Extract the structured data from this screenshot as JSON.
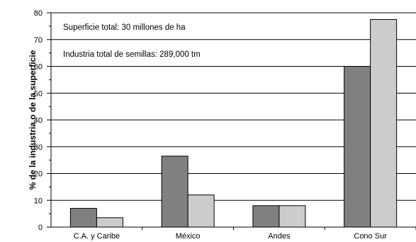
{
  "chart_data": {
    "type": "bar",
    "ylabel": "% de la industria o de la superficie",
    "ylim": [
      0,
      80
    ],
    "yticks": [
      "0",
      "10",
      "20",
      "30",
      "40",
      "50",
      "60",
      "70",
      "80"
    ],
    "grid": true,
    "categories": [
      "C.A. y Caribe",
      "México",
      "Andes",
      "Cono Sur"
    ],
    "series": [
      {
        "values": [
          7,
          26.5,
          8,
          60
        ],
        "color": "#808080"
      },
      {
        "values": [
          3.5,
          12,
          8,
          77.5
        ],
        "color": "#cccccc"
      }
    ],
    "annotations": [
      "Superficie total: 30 millones de ha",
      "Industria total de semillas: 289,000 tm"
    ]
  }
}
